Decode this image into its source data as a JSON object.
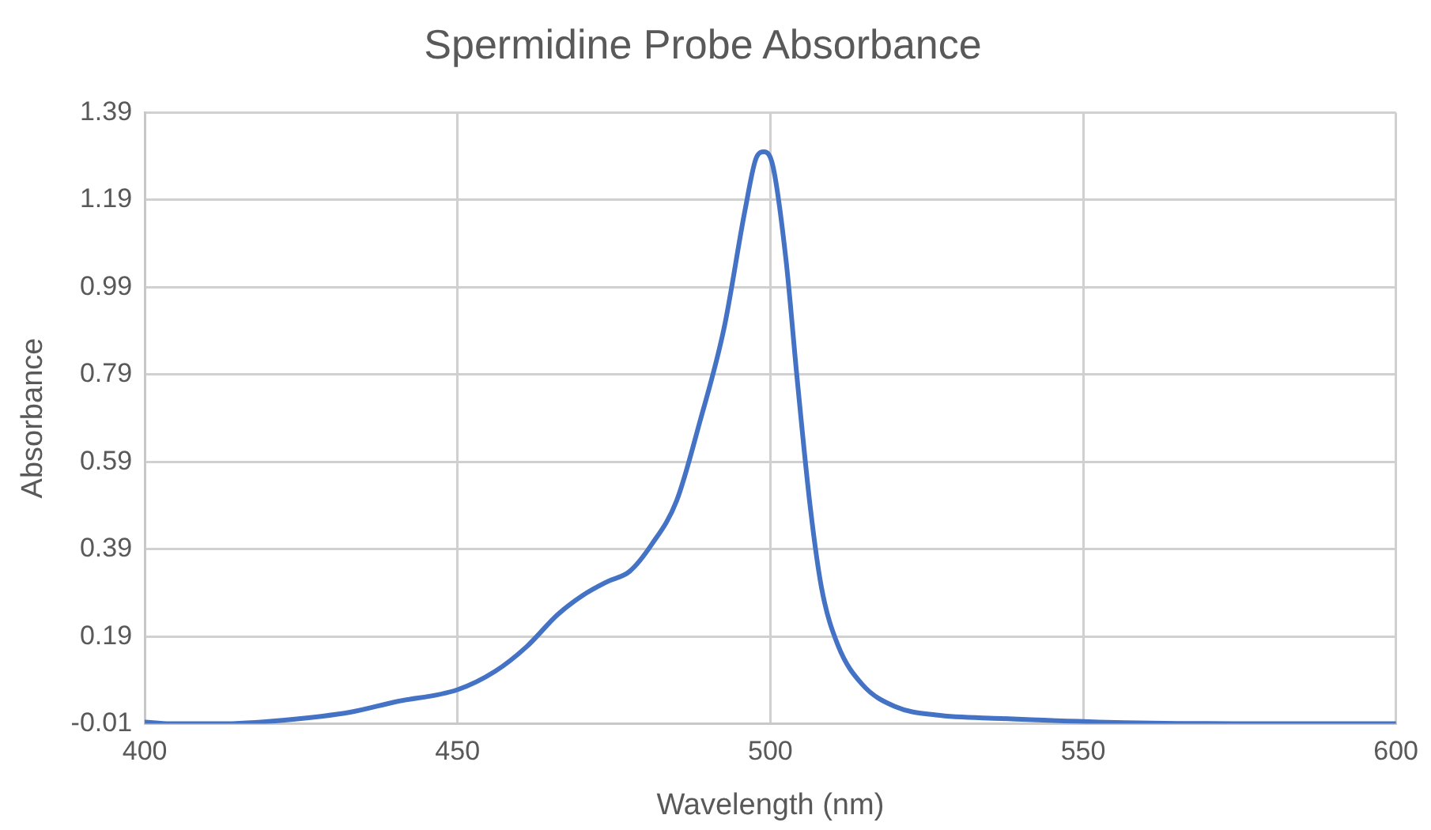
{
  "chart_data": {
    "type": "line",
    "title": "Spermidine Probe Absorbance",
    "xlabel": "Wavelength (nm)",
    "ylabel": "Absorbance",
    "x": [
      400,
      404,
      412,
      422,
      433,
      440,
      450,
      456,
      461,
      466,
      470,
      474,
      477.5,
      481,
      485,
      488.7,
      492.6,
      496,
      497.8,
      499,
      500.4,
      502.5,
      504.3,
      506.4,
      508.2,
      510.8,
      514.7,
      520,
      526.5,
      537,
      552.5,
      578.6,
      600
    ],
    "series": [
      {
        "color": "#4472c4",
        "values": [
          -0.006,
          -0.01,
          -0.01,
          -0.002,
          0.017,
          0.04,
          0.068,
          0.11,
          0.166,
          0.24,
          0.284,
          0.316,
          0.339,
          0.4,
          0.5,
          0.68,
          0.896,
          1.17,
          1.288,
          1.3,
          1.268,
          1.053,
          0.778,
          0.484,
          0.3,
          0.17,
          0.08,
          0.029,
          0.01,
          0.002,
          -0.006,
          -0.01,
          -0.01
        ]
      }
    ],
    "xlim": [
      400,
      600
    ],
    "xticks": [
      400,
      450,
      500,
      550,
      600
    ],
    "ylim": [
      -0.01,
      1.39
    ],
    "yticks": [
      -0.01,
      0.19,
      0.39,
      0.59,
      0.79,
      0.99,
      1.19,
      1.39
    ],
    "grid": true,
    "legend": false,
    "marker": "none",
    "line_style": "solid"
  }
}
